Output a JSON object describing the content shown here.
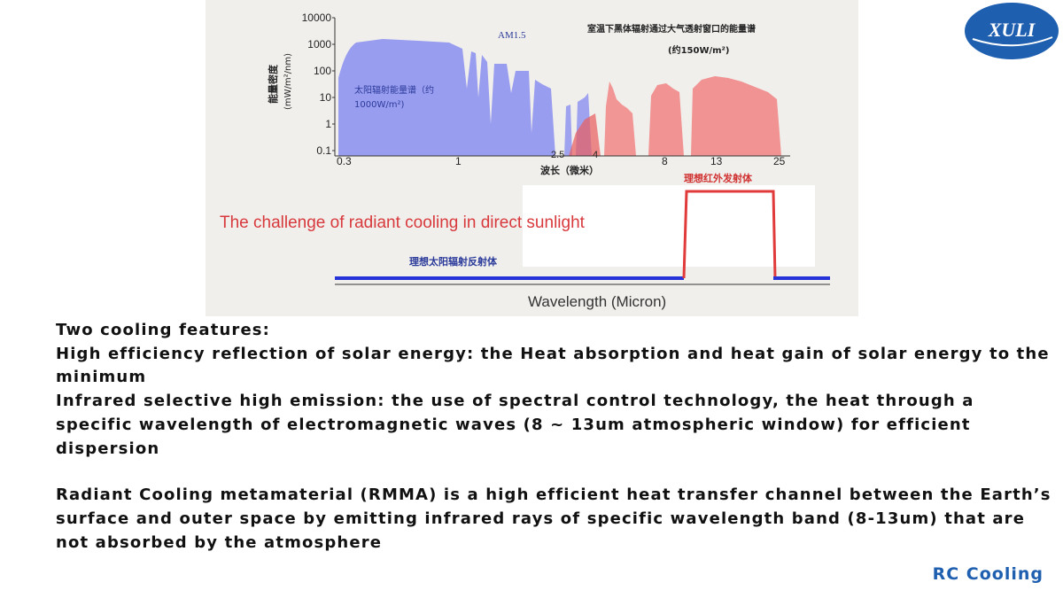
{
  "logo": {
    "text": "XULI",
    "color": "#1f5fb0"
  },
  "figure": {
    "y_axis_label": "能量密度",
    "y_axis_unit": "(mW/m²/nm)",
    "y_ticks": [
      "10000",
      "1000",
      "100",
      "10",
      "1",
      "0.1"
    ],
    "x_ticks": [
      "0.3",
      "1",
      "2.5",
      "4",
      "8",
      "13",
      "25"
    ],
    "x_axis_label": "波长（微米）",
    "am_label": "AM1.5",
    "solar_label_line1": "太阳辐射能量谱（约",
    "solar_label_line2": "1000W/m²)",
    "blackbody_title": "室温下黑体辐射通过大气透射窗口的能量谱",
    "blackbody_sub": "(约150W/m²)",
    "ideal_emitter_label": "理想红外发射体",
    "ideal_reflector_label": "理想太阳辐射反射体",
    "challenge_text": "The challenge of radiant cooling in direct sunlight",
    "wavelength_label": "Wavelength (Micron)",
    "solar_color": "#8a8ef0",
    "emission_color": "#f07878",
    "reflector_line_color": "#2533d8",
    "emitter_line_color": "#e03a3a"
  },
  "body": {
    "heading": "Two cooling features:",
    "feature1": "High efficiency reflection of solar energy: the Heat absorption and heat gain of solar energy to the minimum",
    "feature2": "Infrared selective high emission: the use of spectral control technology, the heat through a specific wavelength of electromagnetic waves (8 ~ 13um atmospheric window) for efficient dispersion",
    "paragraph": "Radiant Cooling metamaterial (RMMA) is a high efficient heat transfer channel between the Earth’s surface and outer space by emitting infrared rays of specific wavelength band (8-13um) that are not absorbed by the atmosphere"
  },
  "footer": {
    "label": "RC Cooling"
  }
}
